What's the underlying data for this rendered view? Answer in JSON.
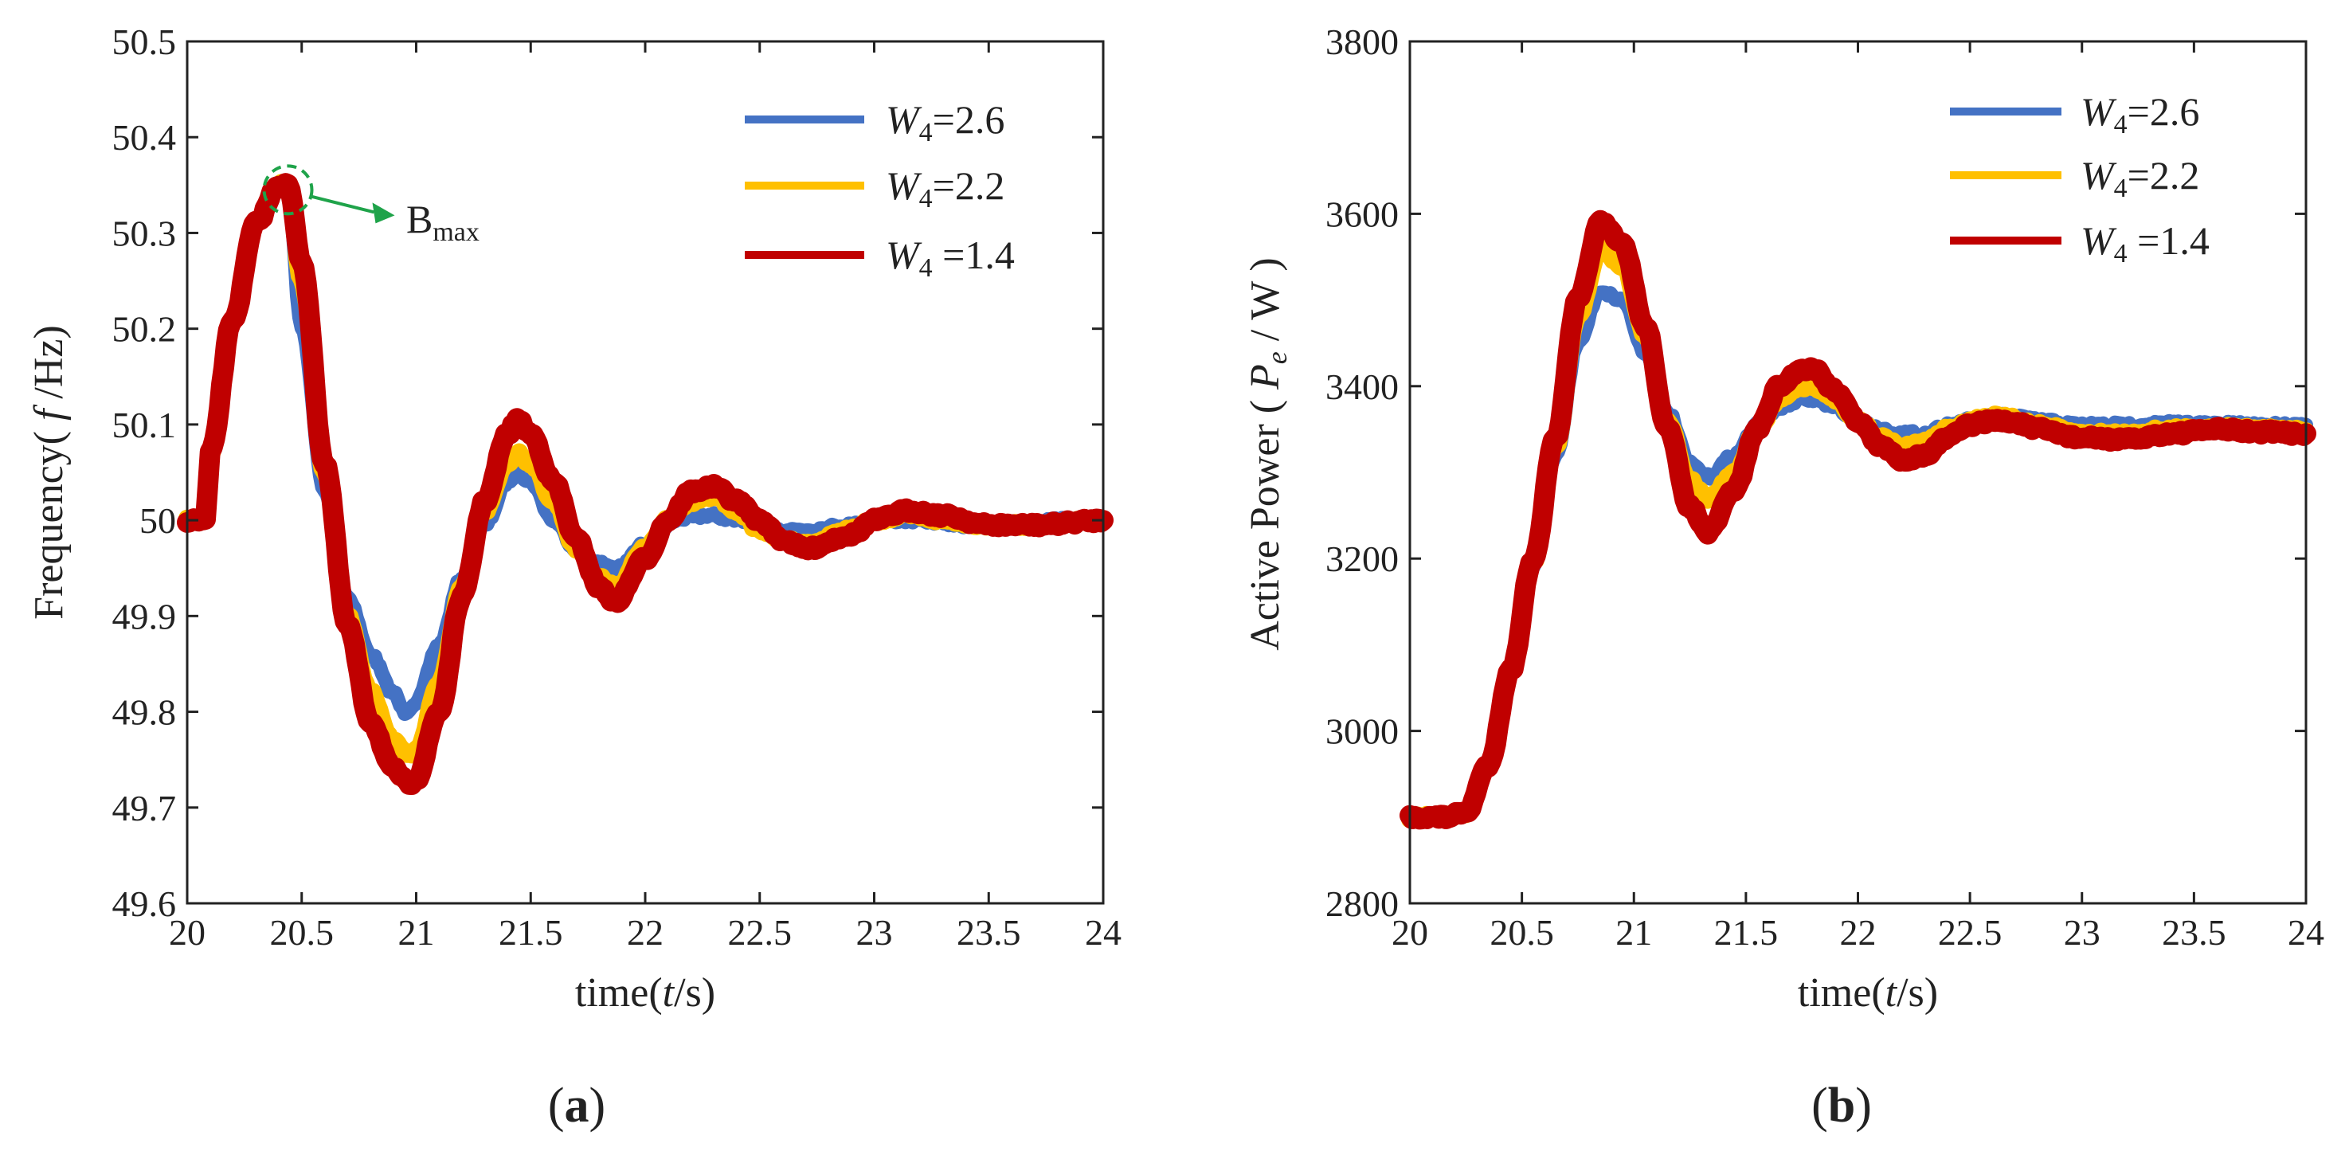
{
  "chart_data": [
    {
      "type": "line",
      "panel_label": "(a)",
      "title": "",
      "xlabel": "time(t/s)",
      "ylabel": "Frequency( f /Hz)",
      "xlim": [
        20,
        24
      ],
      "ylim": [
        49.6,
        50.5
      ],
      "x_ticks": [
        "20",
        "20.5",
        "21",
        "21.5",
        "22",
        "22.5",
        "23",
        "23.5",
        "24"
      ],
      "y_ticks": [
        "49.6",
        "49.7",
        "49.8",
        "49.9",
        "50",
        "50.1",
        "50.2",
        "50.3",
        "50.4",
        "50.5"
      ],
      "grid": false,
      "legend_position": "top-right",
      "annotation": {
        "text": "B",
        "subscript": "max",
        "x": 20.44,
        "y": 50.345
      },
      "series": [
        {
          "name": "W4=2.6",
          "label_main": "W",
          "label_sub": "4",
          "label_rest": "=2.6",
          "color": "#4472c4",
          "x": [
            20.0,
            20.08,
            20.1,
            20.2,
            20.3,
            20.4,
            20.44,
            20.5,
            20.6,
            20.7,
            20.8,
            20.9,
            20.95,
            21.0,
            21.1,
            21.2,
            21.3,
            21.4,
            21.44,
            21.5,
            21.6,
            21.7,
            21.8,
            21.88,
            22.0,
            22.1,
            22.2,
            22.3,
            22.4,
            22.5,
            22.6,
            22.7,
            22.9,
            23.0,
            23.2,
            23.4,
            23.6,
            23.8,
            24.0
          ],
          "y": [
            50.0,
            50.0,
            50.07,
            50.21,
            50.31,
            50.35,
            50.345,
            50.2,
            50.03,
            49.92,
            49.86,
            49.82,
            49.8,
            49.81,
            49.87,
            49.94,
            49.995,
            50.04,
            50.05,
            50.04,
            50.0,
            49.97,
            49.955,
            49.95,
            49.975,
            49.995,
            50.005,
            50.005,
            50.0,
            49.995,
            49.99,
            49.99,
            49.995,
            50.0,
            50.0,
            49.995,
            49.995,
            50.0,
            50.0
          ]
        },
        {
          "name": "W4=2.2",
          "label_main": "W",
          "label_sub": "4",
          "label_rest": "=2.2",
          "color": "#ffc000",
          "x": [
            20.0,
            20.08,
            20.1,
            20.2,
            20.3,
            20.4,
            20.44,
            20.5,
            20.6,
            20.7,
            20.8,
            20.9,
            20.97,
            21.0,
            21.1,
            21.2,
            21.3,
            21.4,
            21.44,
            21.5,
            21.6,
            21.7,
            21.8,
            21.87,
            22.0,
            22.1,
            22.2,
            22.3,
            22.4,
            22.5,
            22.6,
            22.7,
            22.9,
            23.0,
            23.15,
            23.3,
            23.5,
            23.7,
            24.0
          ],
          "y": [
            50.0,
            50.0,
            50.07,
            50.21,
            50.31,
            50.35,
            50.35,
            50.25,
            50.05,
            49.9,
            49.82,
            49.77,
            49.755,
            49.76,
            49.83,
            49.93,
            50.01,
            50.06,
            50.07,
            50.06,
            50.02,
            49.97,
            49.94,
            49.93,
            49.97,
            50.0,
            50.02,
            50.025,
            50.01,
            49.99,
            49.98,
            49.975,
            49.99,
            50.0,
            50.005,
            50.0,
            49.995,
            49.995,
            50.0
          ]
        },
        {
          "name": "W4=1.4",
          "label_main": "W",
          "label_sub": "4",
          "label_rest": " =1.4",
          "color": "#c00000",
          "x": [
            20.0,
            20.08,
            20.1,
            20.2,
            20.3,
            20.4,
            20.44,
            20.5,
            20.6,
            20.7,
            20.8,
            20.9,
            20.97,
            21.0,
            21.1,
            21.2,
            21.3,
            21.4,
            21.44,
            21.5,
            21.6,
            21.7,
            21.8,
            21.87,
            22.0,
            22.1,
            22.2,
            22.3,
            22.4,
            22.5,
            22.6,
            22.7,
            22.9,
            23.0,
            23.15,
            23.3,
            23.5,
            23.7,
            24.0
          ],
          "y": [
            50.0,
            50.0,
            50.07,
            50.21,
            50.31,
            50.35,
            50.35,
            50.27,
            50.06,
            49.89,
            49.79,
            49.74,
            49.725,
            49.73,
            49.8,
            49.92,
            50.02,
            50.09,
            50.105,
            50.09,
            50.04,
            49.98,
            49.93,
            49.915,
            49.96,
            50.0,
            50.03,
            50.035,
            50.02,
            50.0,
            49.98,
            49.97,
            49.985,
            50.0,
            50.01,
            50.005,
            49.995,
            49.995,
            50.0
          ]
        }
      ]
    },
    {
      "type": "line",
      "panel_label": "(b)",
      "title": "",
      "xlabel": "time(t/s)",
      "ylabel": "Active Power ( Pe / W )",
      "xlim": [
        20,
        24
      ],
      "ylim": [
        2800,
        3800
      ],
      "x_ticks": [
        "20",
        "20.5",
        "21",
        "21.5",
        "22",
        "22.5",
        "23",
        "23.5",
        "24"
      ],
      "y_ticks": [
        "2800",
        "3000",
        "3200",
        "3400",
        "3600",
        "3800"
      ],
      "grid": false,
      "legend_position": "top-right",
      "series": [
        {
          "name": "W4=2.6",
          "label_main": "W",
          "label_sub": "4",
          "label_rest": "=2.6",
          "color": "#4472c4",
          "x": [
            20.0,
            20.15,
            20.25,
            20.35,
            20.45,
            20.55,
            20.65,
            20.75,
            20.85,
            20.95,
            21.05,
            21.15,
            21.25,
            21.33,
            21.45,
            21.55,
            21.65,
            21.75,
            21.8,
            21.9,
            22.0,
            22.1,
            22.2,
            22.3,
            22.4,
            22.5,
            22.6,
            22.7,
            22.8,
            23.0,
            23.2,
            23.4,
            23.6,
            23.8,
            24.0
          ],
          "y": [
            2900,
            2900,
            2905,
            2960,
            3070,
            3190,
            3320,
            3450,
            3510,
            3500,
            3440,
            3370,
            3310,
            3295,
            3320,
            3355,
            3375,
            3385,
            3385,
            3375,
            3360,
            3350,
            3345,
            3345,
            3355,
            3360,
            3365,
            3365,
            3360,
            3355,
            3355,
            3357,
            3356,
            3355,
            3355
          ]
        },
        {
          "name": "W4=2.2",
          "label_main": "W",
          "label_sub": "4",
          "label_rest": "=2.2",
          "color": "#ffc000",
          "x": [
            20.0,
            20.15,
            20.25,
            20.35,
            20.45,
            20.55,
            20.65,
            20.75,
            20.85,
            20.95,
            21.05,
            21.15,
            21.25,
            21.33,
            21.45,
            21.55,
            21.65,
            21.75,
            21.8,
            21.9,
            22.0,
            22.1,
            22.2,
            22.3,
            22.4,
            22.5,
            22.6,
            22.7,
            22.8,
            23.0,
            23.2,
            23.4,
            23.6,
            23.8,
            24.0
          ],
          "y": [
            2900,
            2900,
            2905,
            2960,
            3070,
            3195,
            3330,
            3480,
            3560,
            3540,
            3460,
            3360,
            3290,
            3270,
            3300,
            3350,
            3385,
            3400,
            3400,
            3385,
            3360,
            3340,
            3330,
            3335,
            3350,
            3360,
            3365,
            3362,
            3355,
            3345,
            3345,
            3350,
            3352,
            3350,
            3348
          ]
        },
        {
          "name": "W4=1.4",
          "label_main": "W",
          "label_sub": "4",
          "label_rest": " =1.4",
          "color": "#c00000",
          "x": [
            20.0,
            20.15,
            20.25,
            20.35,
            20.45,
            20.55,
            20.65,
            20.75,
            20.85,
            20.95,
            21.05,
            21.15,
            21.25,
            21.33,
            21.45,
            21.55,
            21.65,
            21.75,
            21.8,
            21.9,
            22.0,
            22.1,
            22.2,
            22.3,
            22.4,
            22.5,
            22.6,
            22.7,
            22.8,
            23.0,
            23.2,
            23.4,
            23.6,
            23.8,
            24.0
          ],
          "y": [
            2900,
            2900,
            2905,
            2960,
            3070,
            3200,
            3340,
            3500,
            3590,
            3565,
            3470,
            3350,
            3260,
            3230,
            3280,
            3350,
            3400,
            3420,
            3420,
            3395,
            3360,
            3330,
            3315,
            3320,
            3340,
            3355,
            3360,
            3358,
            3350,
            3340,
            3338,
            3345,
            3350,
            3347,
            3345
          ]
        }
      ]
    }
  ]
}
